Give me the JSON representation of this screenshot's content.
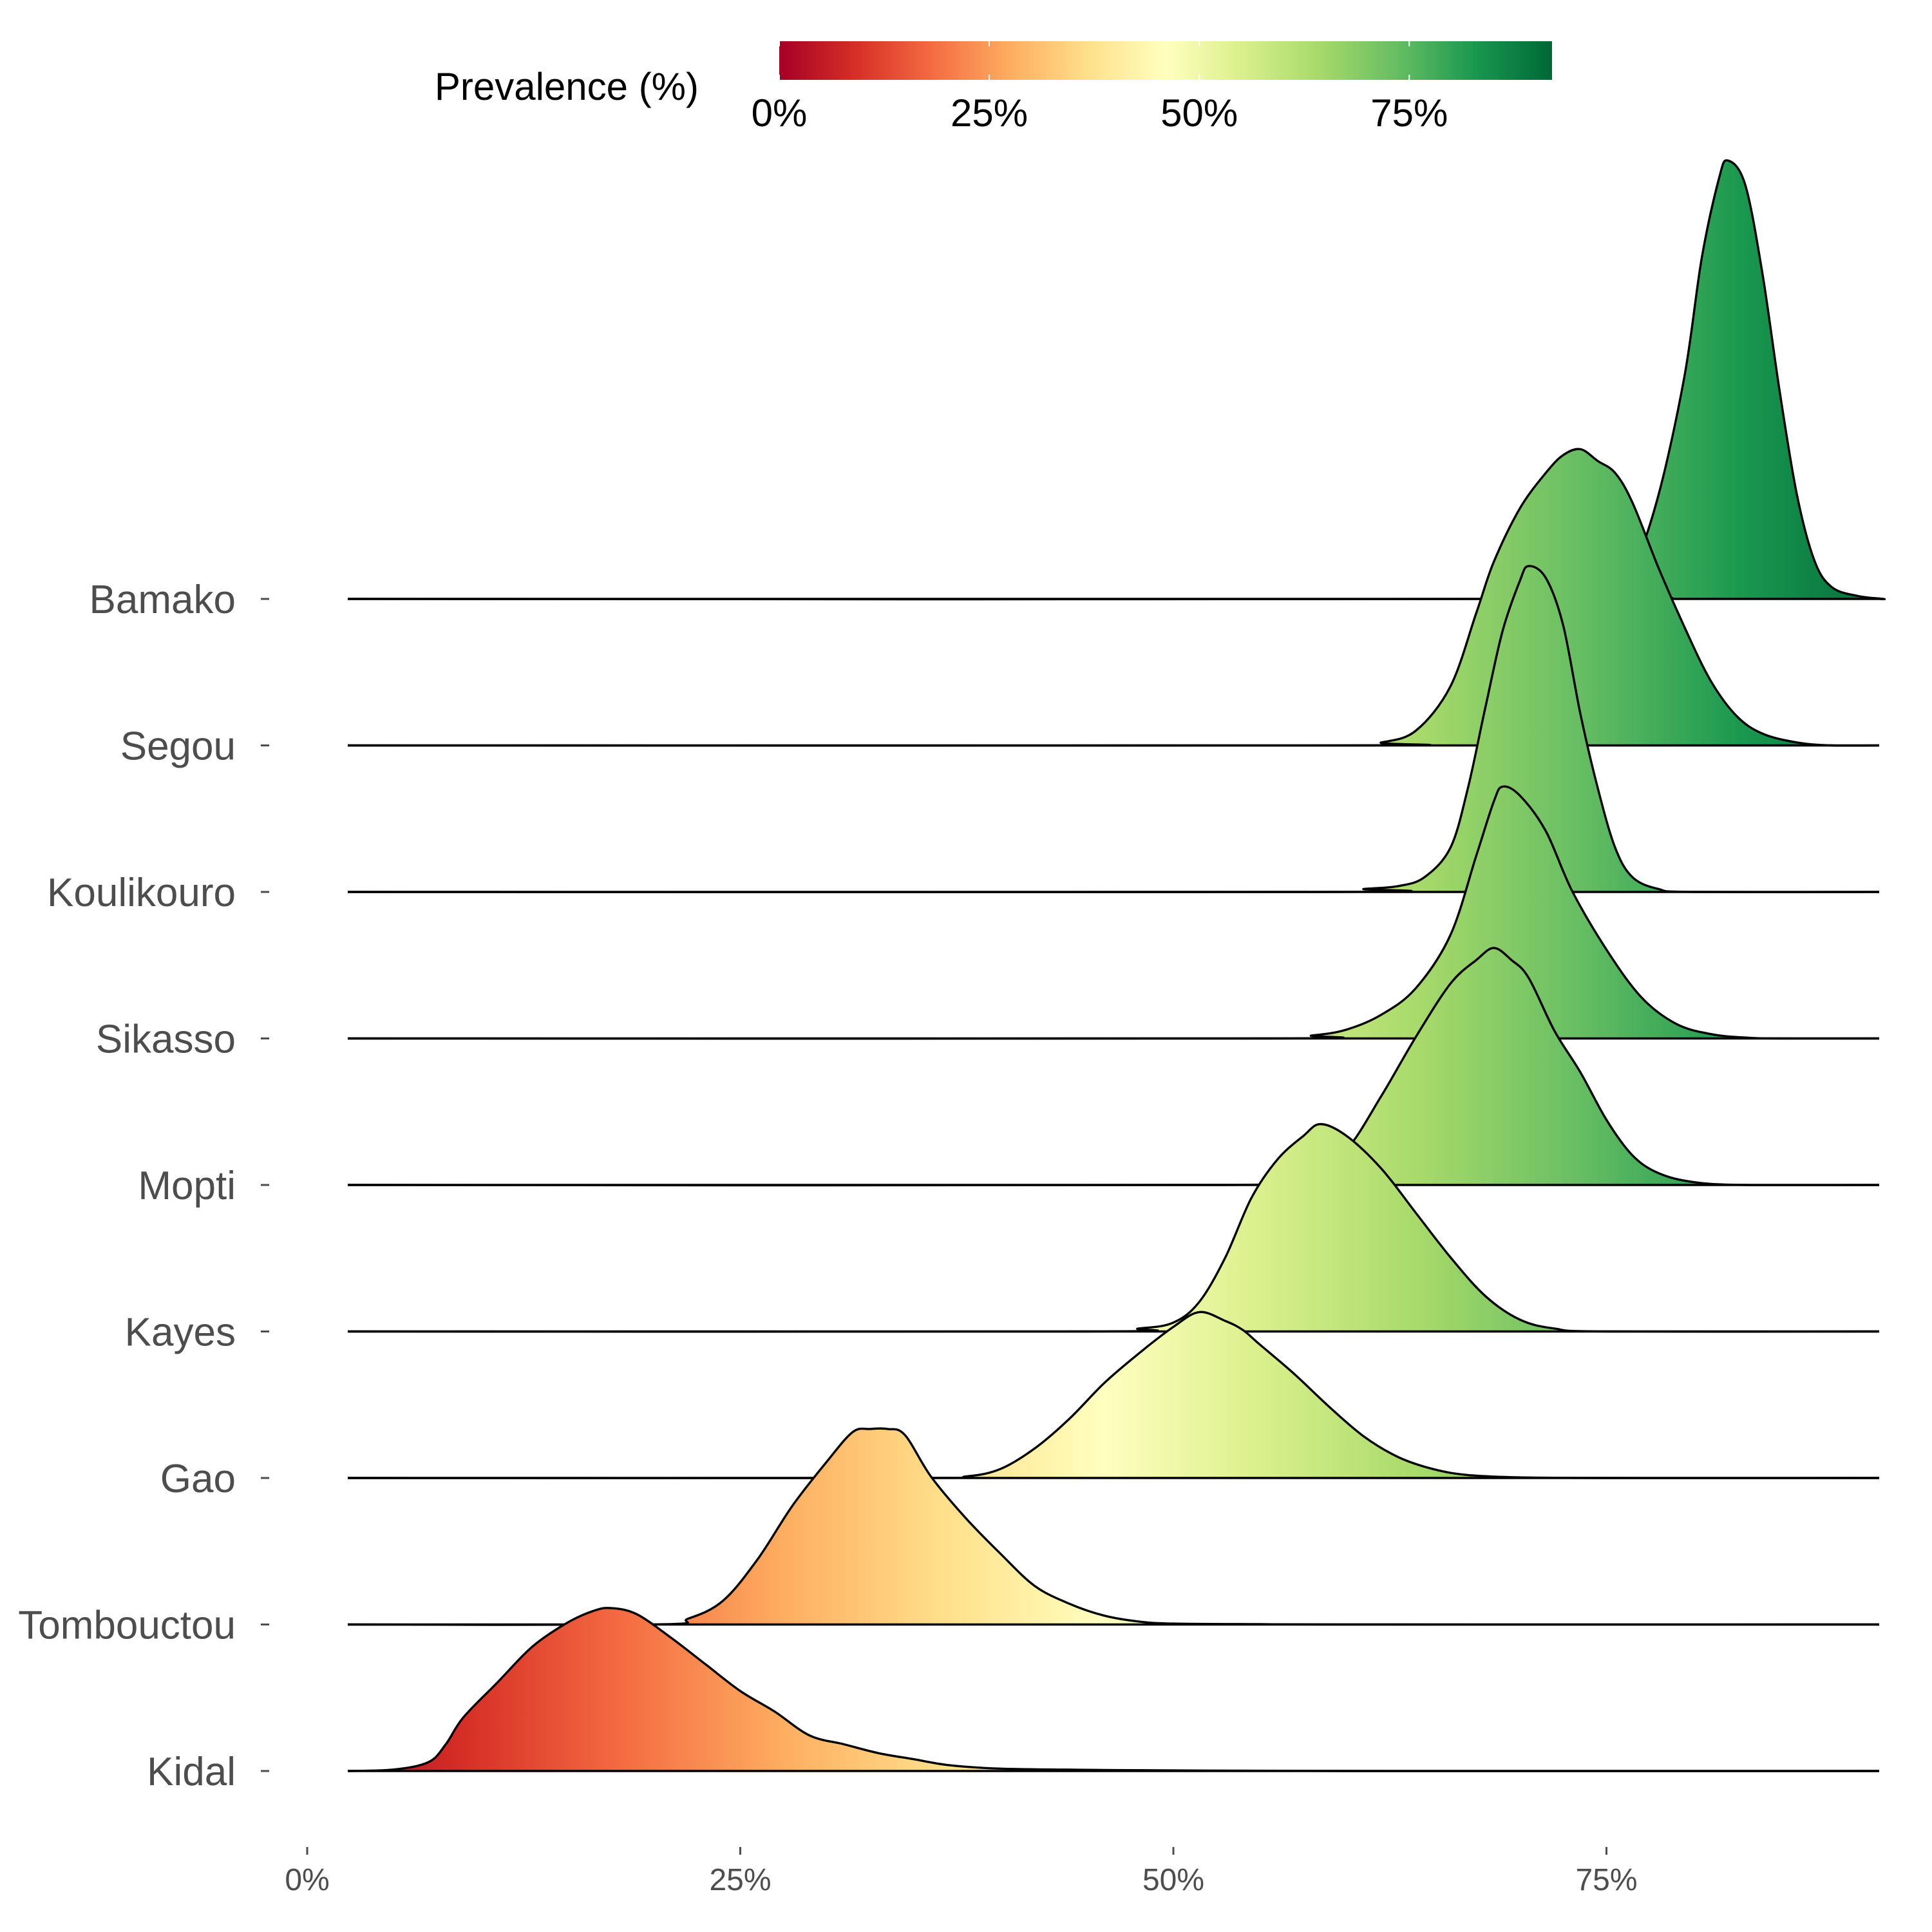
{
  "chart_data": {
    "type": "ridgeline",
    "title": "",
    "xlabel": "",
    "ylabel": "",
    "x_ticks": [
      "0%",
      "25%",
      "50%",
      "75%"
    ],
    "x_tick_values": [
      0,
      25,
      50,
      75
    ],
    "xlim": [
      0,
      92
    ],
    "legend": {
      "title": "Prevalence (%)",
      "position": "top",
      "tick_labels": [
        "0%",
        "25%",
        "50%",
        "75%"
      ],
      "tick_values": [
        0,
        25,
        50,
        75
      ],
      "range": [
        0,
        92
      ],
      "palette": [
        "#a50026",
        "#d73027",
        "#f46d43",
        "#fdae61",
        "#fee08b",
        "#ffffbf",
        "#d9ef8b",
        "#a6d96a",
        "#66bd63",
        "#1a9850",
        "#006837"
      ]
    },
    "series": [
      {
        "name": "Kidal",
        "peak": 17.5,
        "peak_height": 0.55,
        "density": [
          [
            2,
            0
          ],
          [
            5,
            0.005
          ],
          [
            7,
            0.03
          ],
          [
            8,
            0.09
          ],
          [
            9,
            0.18
          ],
          [
            11,
            0.3
          ],
          [
            13,
            0.42
          ],
          [
            15,
            0.5
          ],
          [
            16.5,
            0.54
          ],
          [
            17.5,
            0.55
          ],
          [
            19,
            0.53
          ],
          [
            21,
            0.45
          ],
          [
            23,
            0.36
          ],
          [
            25,
            0.27
          ],
          [
            27,
            0.2
          ],
          [
            29,
            0.12
          ],
          [
            31,
            0.09
          ],
          [
            33,
            0.06
          ],
          [
            35,
            0.04
          ],
          [
            37,
            0.02
          ],
          [
            40,
            0.008
          ],
          [
            45,
            0.004
          ],
          [
            50,
            0.002
          ],
          [
            60,
            0.0
          ],
          [
            92,
            0.0
          ]
        ]
      },
      {
        "name": "Tombouctou",
        "peak": 32.5,
        "peak_height": 0.66,
        "density": [
          [
            2,
            0
          ],
          [
            20,
            0
          ],
          [
            22,
            0.02
          ],
          [
            24,
            0.08
          ],
          [
            26,
            0.22
          ],
          [
            28,
            0.4
          ],
          [
            30,
            0.55
          ],
          [
            31.5,
            0.65
          ],
          [
            32.5,
            0.66
          ],
          [
            33.5,
            0.66
          ],
          [
            34.5,
            0.64
          ],
          [
            36,
            0.5
          ],
          [
            38,
            0.36
          ],
          [
            40,
            0.24
          ],
          [
            42,
            0.13
          ],
          [
            44,
            0.07
          ],
          [
            46,
            0.03
          ],
          [
            48,
            0.01
          ],
          [
            50,
            0.003
          ],
          [
            55,
            0.001
          ],
          [
            60,
            0.0
          ],
          [
            92,
            0.0
          ]
        ]
      },
      {
        "name": "Gao",
        "peak": 51.5,
        "peak_height": 0.56,
        "density": [
          [
            2,
            0
          ],
          [
            35,
            0
          ],
          [
            38,
            0.005
          ],
          [
            40,
            0.03
          ],
          [
            42,
            0.1
          ],
          [
            44,
            0.2
          ],
          [
            46,
            0.32
          ],
          [
            48,
            0.42
          ],
          [
            50,
            0.51
          ],
          [
            51.5,
            0.56
          ],
          [
            53,
            0.53
          ],
          [
            54,
            0.5
          ],
          [
            55,
            0.45
          ],
          [
            57,
            0.35
          ],
          [
            59,
            0.24
          ],
          [
            61,
            0.14
          ],
          [
            63,
            0.07
          ],
          [
            65,
            0.03
          ],
          [
            67,
            0.01
          ],
          [
            70,
            0.002
          ],
          [
            75,
            0.0
          ],
          [
            92,
            0.0
          ]
        ]
      },
      {
        "name": "Kayes",
        "peak": 58.5,
        "peak_height": 0.7,
        "density": [
          [
            2,
            0
          ],
          [
            45,
            0
          ],
          [
            48,
            0.01
          ],
          [
            50,
            0.03
          ],
          [
            51.5,
            0.1
          ],
          [
            53,
            0.25
          ],
          [
            54.5,
            0.45
          ],
          [
            56,
            0.58
          ],
          [
            57.5,
            0.66
          ],
          [
            58.5,
            0.7
          ],
          [
            60,
            0.66
          ],
          [
            62,
            0.55
          ],
          [
            64,
            0.4
          ],
          [
            66,
            0.25
          ],
          [
            68,
            0.12
          ],
          [
            70,
            0.04
          ],
          [
            72,
            0.01
          ],
          [
            75,
            0.0
          ],
          [
            92,
            0.0
          ]
        ]
      },
      {
        "name": "Mopti",
        "peak": 68.5,
        "peak_height": 0.8,
        "density": [
          [
            2,
            0
          ],
          [
            53,
            0
          ],
          [
            56,
            0.02
          ],
          [
            58,
            0.05
          ],
          [
            60,
            0.12
          ],
          [
            62,
            0.3
          ],
          [
            64,
            0.5
          ],
          [
            66,
            0.68
          ],
          [
            67.5,
            0.76
          ],
          [
            68.5,
            0.8
          ],
          [
            69.5,
            0.76
          ],
          [
            70.5,
            0.7
          ],
          [
            72,
            0.52
          ],
          [
            73.5,
            0.38
          ],
          [
            75,
            0.22
          ],
          [
            76.5,
            0.1
          ],
          [
            78,
            0.04
          ],
          [
            80,
            0.01
          ],
          [
            83,
            0.0
          ],
          [
            92,
            0.0
          ]
        ]
      },
      {
        "name": "Sikasso",
        "peak": 69,
        "peak_height": 0.85,
        "density": [
          [
            2,
            0
          ],
          [
            55,
            0
          ],
          [
            58,
            0.01
          ],
          [
            60,
            0.03
          ],
          [
            62,
            0.08
          ],
          [
            64,
            0.17
          ],
          [
            66,
            0.35
          ],
          [
            67.5,
            0.62
          ],
          [
            68.5,
            0.8
          ],
          [
            69,
            0.85
          ],
          [
            70,
            0.82
          ],
          [
            71.5,
            0.7
          ],
          [
            73,
            0.5
          ],
          [
            75,
            0.3
          ],
          [
            77,
            0.14
          ],
          [
            79,
            0.05
          ],
          [
            81,
            0.015
          ],
          [
            83,
            0.003
          ],
          [
            85,
            0.0
          ],
          [
            92,
            0.0
          ]
        ]
      },
      {
        "name": "Koulikouro",
        "peak": 70.5,
        "peak_height": 1.1,
        "density": [
          [
            2,
            0
          ],
          [
            59,
            0
          ],
          [
            61,
            0.01
          ],
          [
            63,
            0.02
          ],
          [
            64.5,
            0.05
          ],
          [
            66,
            0.15
          ],
          [
            67,
            0.35
          ],
          [
            68,
            0.62
          ],
          [
            69,
            0.88
          ],
          [
            70,
            1.05
          ],
          [
            70.5,
            1.1
          ],
          [
            71.5,
            1.06
          ],
          [
            72.5,
            0.9
          ],
          [
            73.5,
            0.6
          ],
          [
            74.5,
            0.35
          ],
          [
            75.5,
            0.15
          ],
          [
            76.5,
            0.05
          ],
          [
            78,
            0.01
          ],
          [
            80,
            0.0
          ],
          [
            92,
            0.0
          ]
        ]
      },
      {
        "name": "Segou",
        "peak": 73.5,
        "peak_height": 1.0,
        "density": [
          [
            2,
            0
          ],
          [
            60,
            0
          ],
          [
            62,
            0.01
          ],
          [
            64,
            0.05
          ],
          [
            66,
            0.2
          ],
          [
            67.5,
            0.45
          ],
          [
            68.5,
            0.62
          ],
          [
            70,
            0.8
          ],
          [
            71.5,
            0.92
          ],
          [
            72.5,
            0.98
          ],
          [
            73.5,
            1.0
          ],
          [
            74.5,
            0.96
          ],
          [
            75.5,
            0.92
          ],
          [
            76.5,
            0.82
          ],
          [
            78,
            0.6
          ],
          [
            79.5,
            0.4
          ],
          [
            81,
            0.22
          ],
          [
            82.5,
            0.1
          ],
          [
            84,
            0.04
          ],
          [
            86,
            0.01
          ],
          [
            88,
            0.0
          ],
          [
            92,
            0.0
          ]
        ]
      },
      {
        "name": "Bamako",
        "peak": 82,
        "peak_height": 1.48,
        "density": [
          [
            2,
            0
          ],
          [
            73,
            0
          ],
          [
            75,
            0.02
          ],
          [
            76.5,
            0.1
          ],
          [
            78,
            0.35
          ],
          [
            79.5,
            0.75
          ],
          [
            80.5,
            1.15
          ],
          [
            81.5,
            1.42
          ],
          [
            82,
            1.48
          ],
          [
            83,
            1.4
          ],
          [
            84,
            1.1
          ],
          [
            85,
            0.7
          ],
          [
            86,
            0.35
          ],
          [
            87,
            0.13
          ],
          [
            88,
            0.04
          ],
          [
            89.5,
            0.01
          ],
          [
            91,
            0.0
          ],
          [
            92,
            0.0
          ]
        ]
      }
    ]
  }
}
